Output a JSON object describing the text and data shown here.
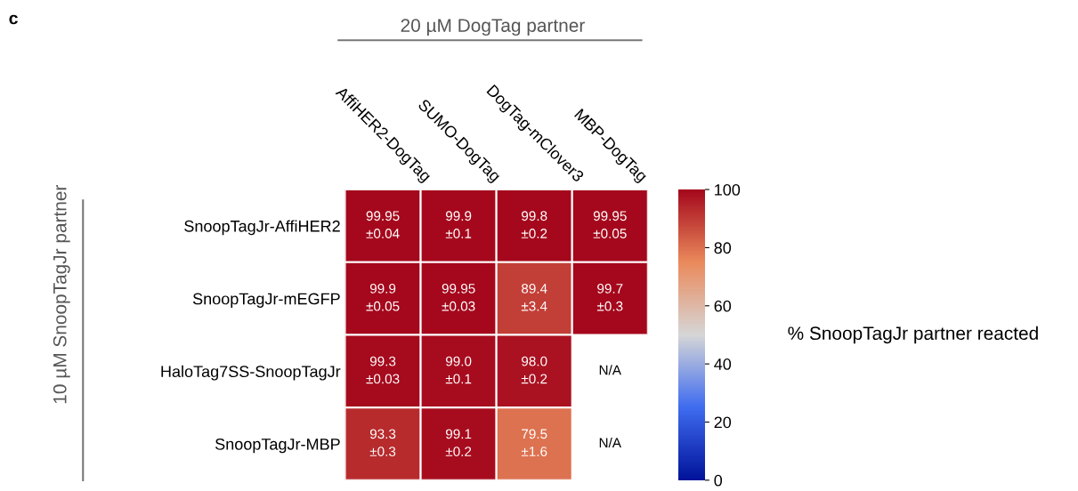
{
  "chart_data": {
    "type": "heatmap",
    "xlabel": "20 µM DogTag partner",
    "ylabel": "10 µM SnoopTagJr partner",
    "clabel": "% SnoopTagJr partner reacted",
    "categories": [
      "AffiHER2-DogTag",
      "SUMO-DogTag",
      "DogTag-mClover3",
      "MBP-DogTag"
    ],
    "y_categories": [
      "SnoopTagJr-AffiHER2",
      "SnoopTagJr-mEGFP",
      "HaloTag7SS-SnoopTagJr",
      "SnoopTagJr-MBP"
    ],
    "cells": [
      [
        99.95,
        99.9,
        99.8,
        99.95
      ],
      [
        99.9,
        99.95,
        89.4,
        99.7
      ],
      [
        99.3,
        99.0,
        98.0,
        null
      ],
      [
        93.3,
        99.1,
        79.5,
        null
      ]
    ],
    "cell_labels": [
      [
        "99.95\n±0.04",
        "99.9\n±0.1",
        "99.8\n±0.2",
        "99.95\n±0.05"
      ],
      [
        "99.9\n±0.05",
        "99.95\n±0.03",
        "89.4\n±3.4",
        "99.7\n±0.3"
      ],
      [
        "99.3\n±0.03",
        "99.0\n±0.1",
        "98.0\n±0.2",
        "N/A"
      ],
      [
        "93.3\n±0.3",
        "99.1\n±0.2",
        "79.5\n±1.6",
        "N/A"
      ]
    ],
    "clim": [
      0,
      100
    ],
    "cticks": [
      0,
      20,
      40,
      60,
      80,
      100
    ],
    "annotations": [
      "c"
    ]
  }
}
